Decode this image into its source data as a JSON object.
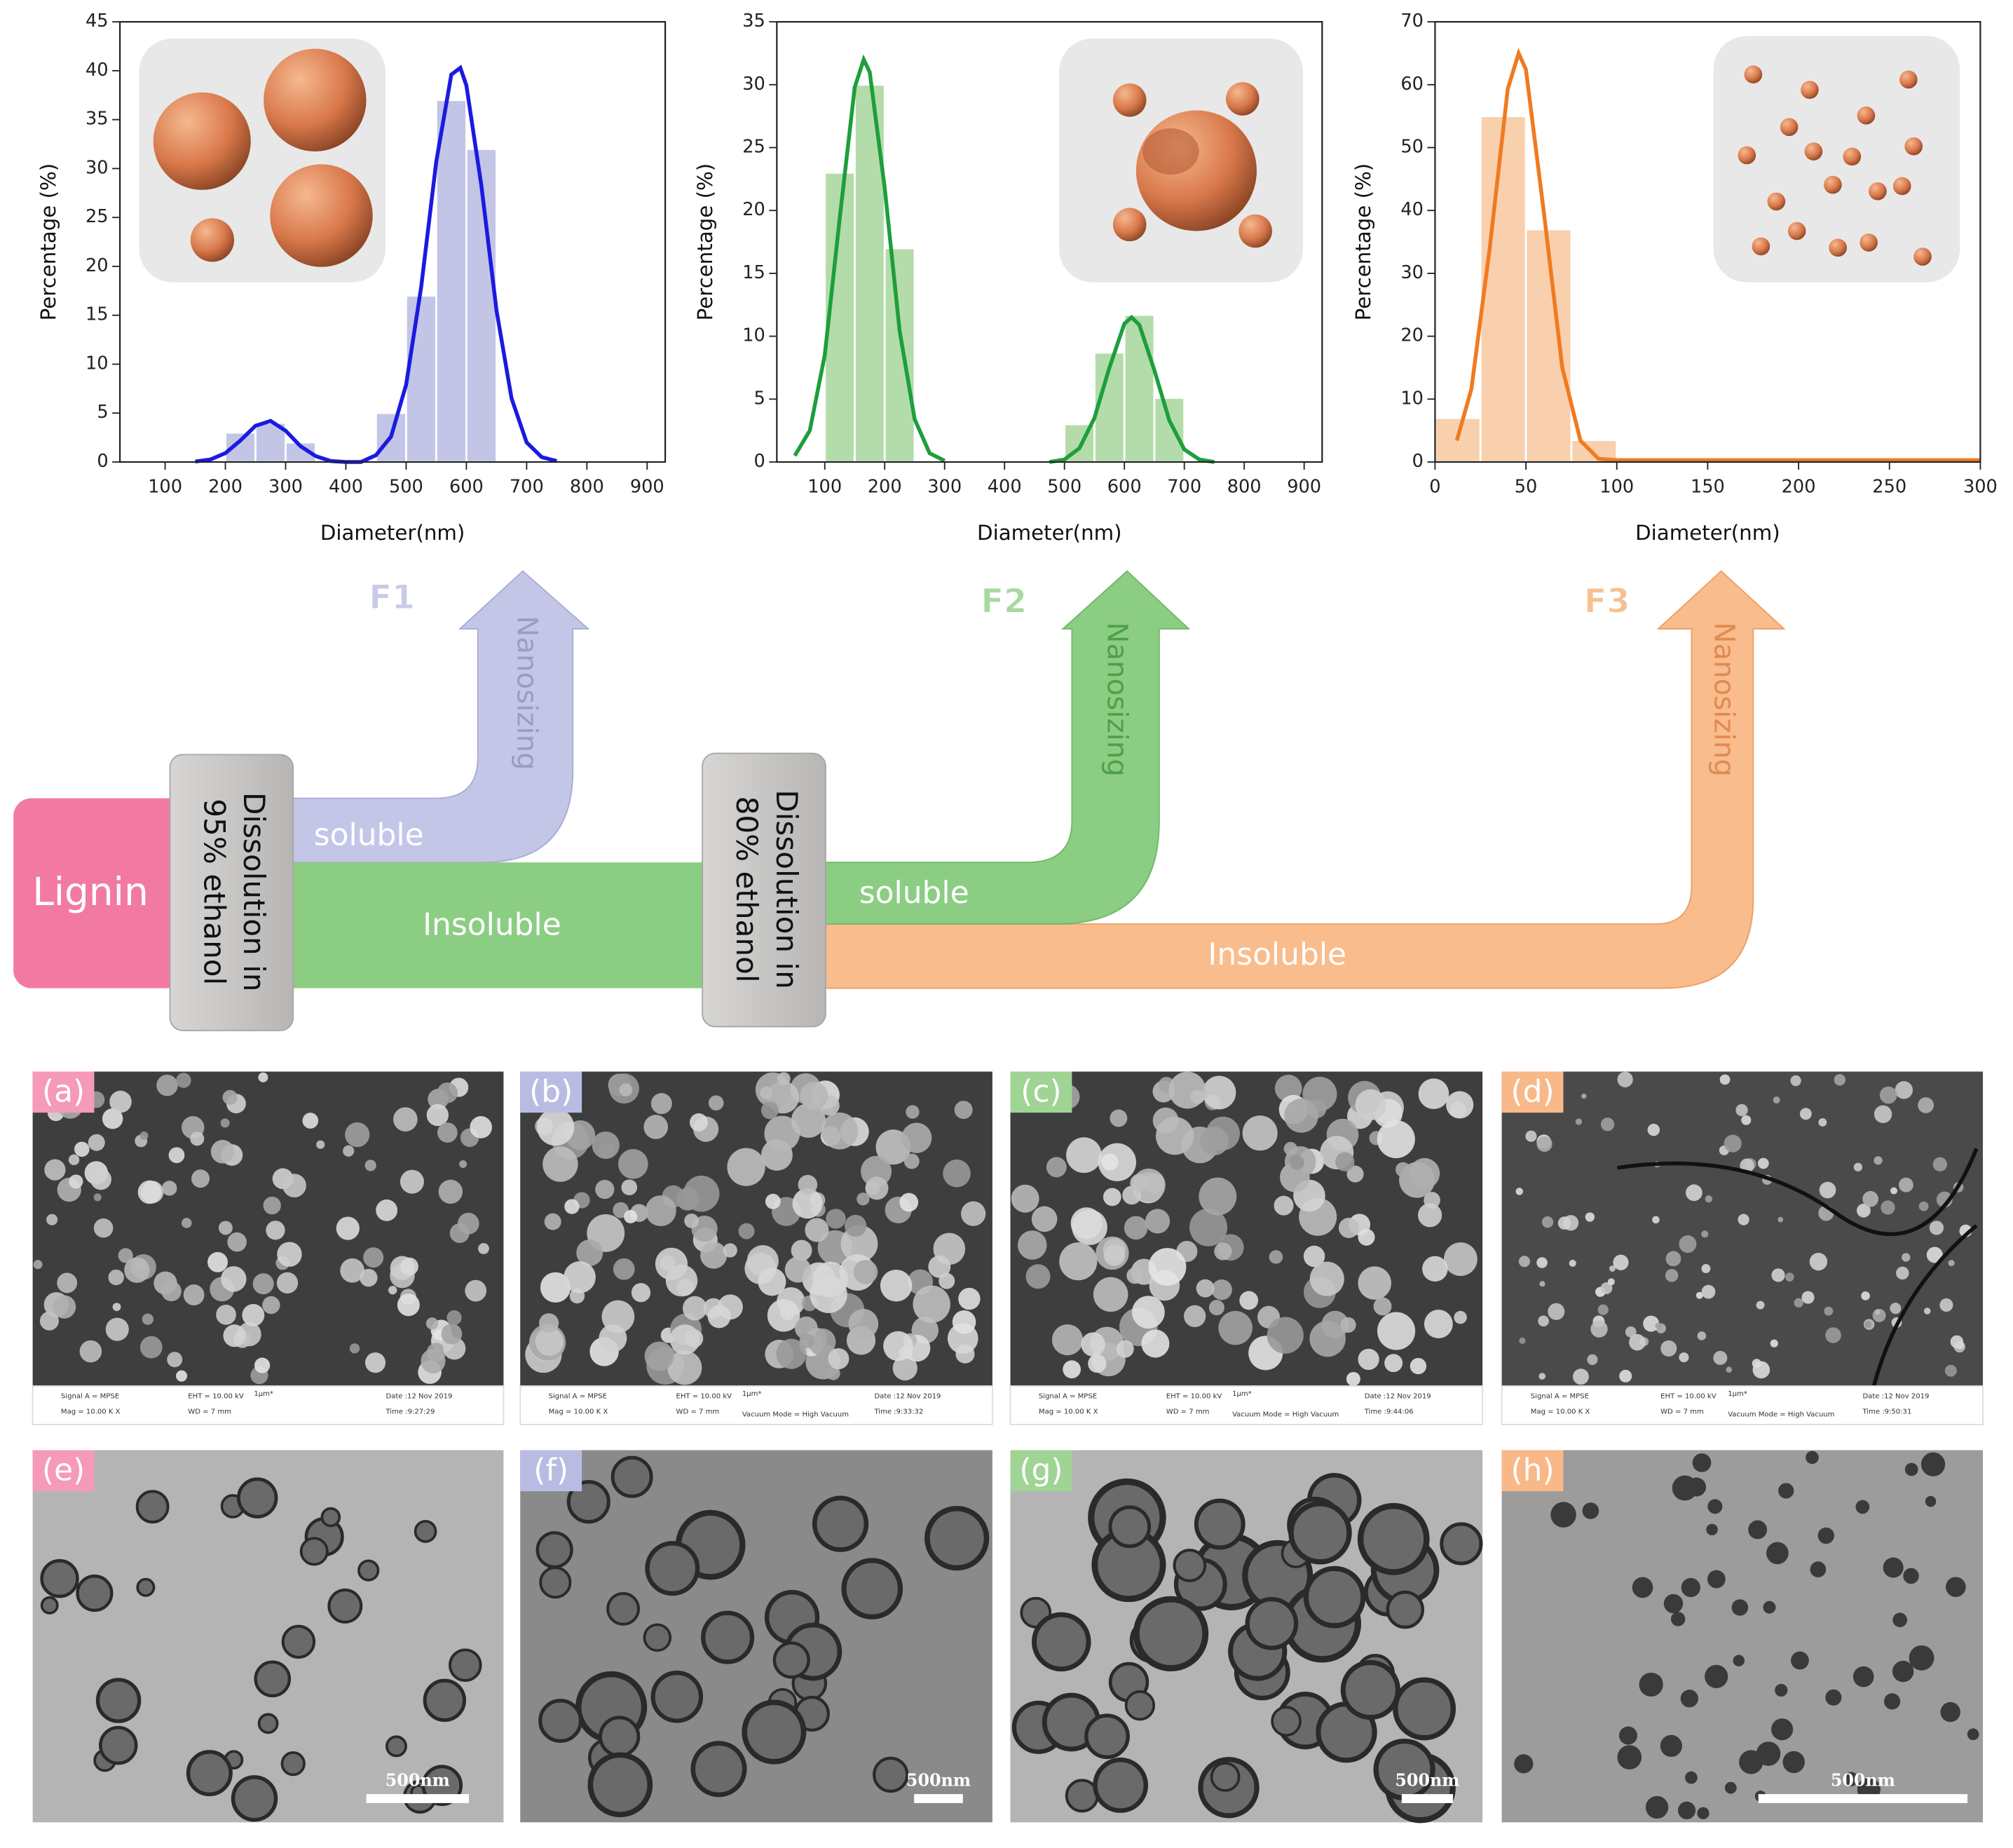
{
  "chart_data": [
    {
      "type": "histogram",
      "label": "F1",
      "xlabel": "Diameter(nm)",
      "ylabel": "Percentage (%)",
      "bins": [
        200,
        250,
        300,
        350,
        400,
        450,
        500,
        550,
        600,
        650
      ],
      "values": [
        3,
        4,
        2,
        0,
        0,
        5,
        17,
        37,
        32
      ],
      "color": "#b8bbe2",
      "fit": {
        "color": "#1a1ae0",
        "x": [
          150,
          175,
          200,
          225,
          250,
          275,
          300,
          325,
          350,
          375,
          400,
          425,
          450,
          475,
          500,
          525,
          550,
          575,
          590,
          600,
          625,
          650,
          675,
          700,
          725,
          750
        ],
        "y": [
          0.05,
          0.25,
          0.9,
          2.2,
          3.7,
          4.2,
          3.2,
          1.6,
          0.6,
          0.1,
          0,
          0,
          0.7,
          2.6,
          7.9,
          17.9,
          30.7,
          39.6,
          40.3,
          38.5,
          28.2,
          15.5,
          6.5,
          2.0,
          0.5,
          0.1
        ]
      },
      "xlim": [
        25,
        930
      ],
      "xticks": [
        100,
        200,
        300,
        400,
        500,
        600,
        700,
        800,
        900
      ],
      "ylim": [
        0,
        45
      ],
      "yticks": [
        0,
        5,
        10,
        15,
        20,
        25,
        30,
        35,
        40,
        45
      ]
    },
    {
      "type": "histogram",
      "label": "F2",
      "xlabel": "Diameter(nm)",
      "ylabel": "Percentage (%)",
      "bins": [
        100,
        150,
        200,
        250,
        300,
        350,
        400,
        450,
        500,
        550,
        600,
        650,
        700
      ],
      "values": [
        23,
        30,
        17,
        0,
        0,
        0,
        0,
        0,
        3,
        8.7,
        11.7,
        5.1
      ],
      "color": "#a6d69c",
      "fit": {
        "color": "#1e9e3c",
        "x": [
          50,
          75,
          100,
          125,
          150,
          165,
          175,
          200,
          225,
          250,
          275,
          300,
          400,
          475,
          500,
          525,
          550,
          575,
          600,
          612,
          625,
          650,
          675,
          700,
          725,
          750
        ],
        "y": [
          0.5,
          2.5,
          8.5,
          19.4,
          29.8,
          32,
          31.0,
          21.8,
          10.4,
          3.4,
          0.7,
          0.1,
          null,
          0,
          0.2,
          1.1,
          3.5,
          7.5,
          11.0,
          11.5,
          10.9,
          7.3,
          3.3,
          1.0,
          0.2,
          0
        ]
      },
      "xlim": [
        20,
        930
      ],
      "xticks": [
        100,
        200,
        300,
        400,
        500,
        600,
        700,
        800,
        900
      ],
      "ylim": [
        0,
        35
      ],
      "yticks": [
        0,
        5,
        10,
        15,
        20,
        25,
        30,
        35
      ]
    },
    {
      "type": "histogram",
      "label": "F3",
      "xlabel": "Diameter(nm)",
      "ylabel": "Percentage (%)",
      "bins": [
        0,
        25,
        50,
        75,
        100
      ],
      "values": [
        7,
        55,
        37,
        3.5
      ],
      "color": "#f9c8a0",
      "fit": {
        "color": "#f07a20",
        "x": [
          12,
          20,
          30,
          40,
          46,
          50,
          60,
          70,
          80,
          90,
          100,
          150,
          200,
          250,
          300
        ],
        "y": [
          3.4,
          11.6,
          33.8,
          59.3,
          65,
          62.4,
          39.4,
          15.0,
          3.4,
          0.5,
          0.3,
          0.3,
          0.3,
          0.3,
          0.3
        ]
      },
      "xlim": [
        0,
        300
      ],
      "xticks": [
        0,
        50,
        100,
        150,
        200,
        250,
        300
      ],
      "ylim": [
        0,
        70
      ],
      "yticks": [
        0,
        10,
        20,
        30,
        40,
        50,
        60,
        70
      ]
    }
  ],
  "flow": {
    "source": "Lignin",
    "step1": [
      "Dissolution in",
      "95% ethanol"
    ],
    "step2": [
      "Dissolution in",
      "80% ethanol"
    ],
    "soluble1": "soluble",
    "insoluble1": "Insoluble",
    "soluble2": "soluble",
    "insoluble2": "Insoluble",
    "arrows": [
      "Nanosizing",
      "Nanosizing",
      "Nanosizing"
    ]
  },
  "sem": [
    {
      "label": "(a)",
      "info": [
        "Signal A = MPSE",
        "Mag = 10.00 K X",
        "EHT = 10.00 kV",
        "WD = 7 mm",
        "1μm*",
        "Date :12 Nov 2019",
        "Time :9:27:29"
      ]
    },
    {
      "label": "(b)",
      "info": [
        "Signal A = MPSE",
        "Mag = 10.00 K X",
        "EHT = 10.00 kV",
        "WD = 7 mm",
        "1μm*",
        "Vacuum Mode = High Vacuum",
        "Date :12 Nov 2019",
        "Time :9:33:32"
      ]
    },
    {
      "label": "(c)",
      "info": [
        "Signal A = MPSE",
        "Mag = 10.00 K X",
        "EHT = 10.00 kV",
        "WD = 7 mm",
        "1μm*",
        "Vacuum Mode = High Vacuum",
        "Date :12 Nov 2019",
        "Time :9:44:06"
      ]
    },
    {
      "label": "(d)",
      "info": [
        "Signal A = MPSE",
        "Mag = 10.00 K X",
        "EHT = 10.00 kV",
        "WD = 7 mm",
        "1μm*",
        "Vacuum Mode = High Vacuum",
        "Date :12 Nov 2019",
        "Time :9:50:31"
      ]
    }
  ],
  "tem": [
    {
      "label": "(e)",
      "scale": "500nm"
    },
    {
      "label": "(f)",
      "scale": "500nm"
    },
    {
      "label": "(g)",
      "scale": "500nm"
    },
    {
      "label": "(h)",
      "scale": "500nm"
    }
  ]
}
